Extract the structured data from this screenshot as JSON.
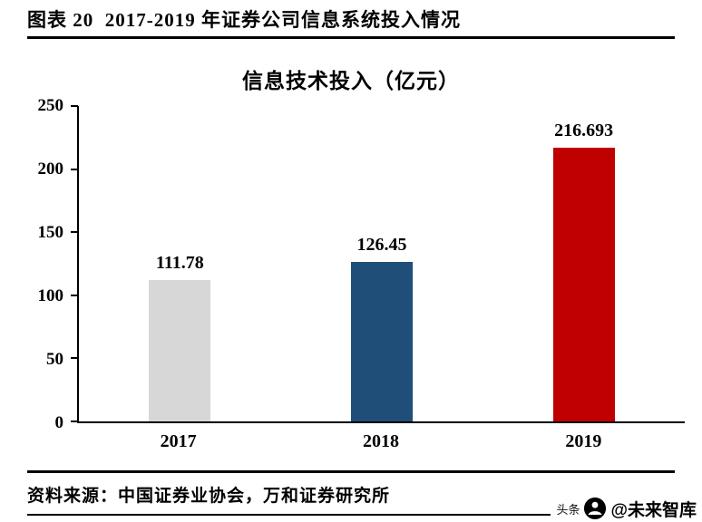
{
  "header": {
    "caption": "图表 20  2017-2019 年证券公司信息系统投入情况"
  },
  "chart_data": {
    "type": "bar",
    "title": "信息技术投入（亿元）",
    "categories": [
      "2017",
      "2018",
      "2019"
    ],
    "values": [
      111.78,
      126.45,
      216.693
    ],
    "value_labels": [
      "111.78",
      "126.45",
      "216.693"
    ],
    "bar_colors": [
      "#d7d7d7",
      "#1f4e79",
      "#c00000"
    ],
    "xlabel": "",
    "ylabel": "",
    "ylim": [
      0,
      250
    ],
    "yticks": [
      0,
      50,
      100,
      150,
      200,
      250
    ],
    "grid": false,
    "legend": false
  },
  "footer": {
    "source": "资料来源：中国证券业协会，万和证券研究所",
    "watermark": {
      "brand": "头条",
      "handle": "@未来智库",
      "logo_icon": "toutiao-logo"
    }
  }
}
